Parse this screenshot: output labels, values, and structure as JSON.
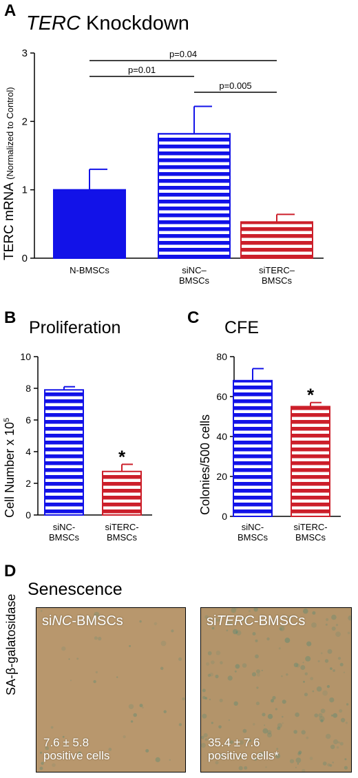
{
  "colors": {
    "blue": "#1212e8",
    "red": "#cc1f2a",
    "stain_bg": "#b8976d",
    "stain_dots": "#5f8a72"
  },
  "panel_a": {
    "letter": "A",
    "title_italic": "TERC",
    "title_rest": " Knockdown",
    "ylabel_main": "TERC mRNA",
    "ylabel_sub": "(Normalized to Control)",
    "sig": [
      {
        "text": "p=0.04"
      },
      {
        "text": "p=0.01"
      },
      {
        "text": "p=0.005"
      }
    ]
  },
  "panel_b": {
    "letter": "B",
    "title": "Proliferation",
    "ylabel": "Cell Number x 10",
    "ylabel_sup": "5",
    "star": "*"
  },
  "panel_c": {
    "letter": "C",
    "title": "CFE",
    "ylabel": "Colonies/500 cells",
    "star": "*"
  },
  "panel_d": {
    "letter": "D",
    "title": "Senescence",
    "ylabel": "SA-β-galatosidase",
    "images": [
      {
        "title_pre": "si",
        "title_it": "NC",
        "title_post": "-BMSCs",
        "line1": "7.6 ± 5.8",
        "line2": "positive cells"
      },
      {
        "title_pre": "si",
        "title_it": "TERC",
        "title_post": "-BMSCs",
        "line1": "35.4 ± 7.6",
        "line2": "positive cells*"
      }
    ]
  },
  "chart_data": [
    {
      "type": "bar",
      "title": "TERC Knockdown",
      "ylabel": "TERC mRNA (Normalized to Control)",
      "ylim": [
        0,
        3
      ],
      "yticks": [
        0,
        1,
        2,
        3
      ],
      "categories": [
        {
          "lines": [
            "N-BMSCs"
          ]
        },
        {
          "lines": [
            "siNC–",
            "BMSCs"
          ]
        },
        {
          "lines": [
            "siTERC–",
            "BMSCs"
          ]
        }
      ],
      "values": [
        1.0,
        1.82,
        0.53
      ],
      "errors": [
        0.3,
        0.4,
        0.11
      ],
      "styles": [
        "blue-solid",
        "blue-striped",
        "red-striped"
      ],
      "annotations": [
        "p=0.04",
        "p=0.01",
        "p=0.005"
      ]
    },
    {
      "type": "bar",
      "title": "Proliferation",
      "ylabel": "Cell Number x 10^5",
      "ylim": [
        0,
        10
      ],
      "yticks": [
        0,
        2,
        4,
        6,
        8,
        10
      ],
      "categories": [
        {
          "lines": [
            "siNC-",
            "BMSCs"
          ]
        },
        {
          "lines": [
            "siTERC-",
            "BMSCs"
          ]
        }
      ],
      "values": [
        7.9,
        2.75
      ],
      "errors": [
        0.2,
        0.45
      ],
      "styles": [
        "blue-striped",
        "red-striped"
      ]
    },
    {
      "type": "bar",
      "title": "CFE",
      "ylabel": "Colonies/500 cells",
      "ylim": [
        0,
        80
      ],
      "yticks": [
        0,
        20,
        40,
        60,
        80
      ],
      "categories": [
        {
          "lines": [
            "siNC-",
            "BMSCs"
          ]
        },
        {
          "lines": [
            "siTERC-",
            "BMSCs"
          ]
        }
      ],
      "values": [
        68,
        55
      ],
      "errors": [
        6,
        2
      ],
      "styles": [
        "blue-striped",
        "red-striped"
      ]
    }
  ]
}
